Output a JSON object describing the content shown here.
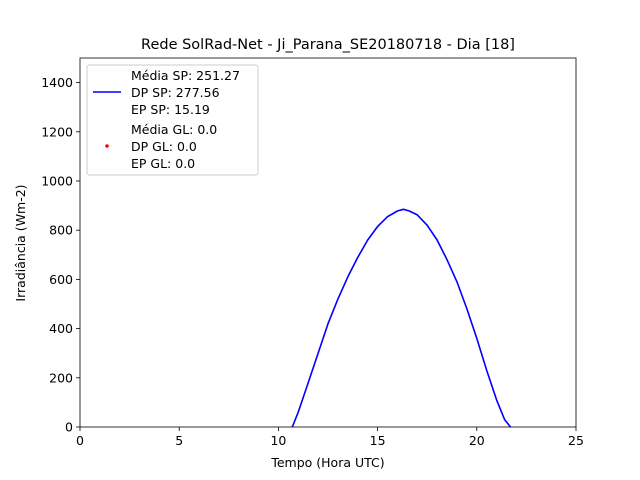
{
  "chart_data": {
    "type": "line",
    "title": "Rede SolRad-Net - Ji_Parana_SE20180718 - Dia [18]",
    "xlabel": "Tempo (Hora UTC)",
    "ylabel": "Irradiância (Wm-2)",
    "xlim": [
      0,
      25
    ],
    "ylim": [
      0,
      1500
    ],
    "xticks": [
      0,
      5,
      10,
      15,
      20,
      25
    ],
    "yticks": [
      0,
      200,
      400,
      600,
      800,
      1000,
      1200,
      1400
    ],
    "xtick_labels": [
      "0",
      "5",
      "10",
      "15",
      "20",
      "25"
    ],
    "ytick_labels": [
      "0",
      "200",
      "400",
      "600",
      "800",
      "1000",
      "1200",
      "1400"
    ],
    "grid": false,
    "legend_position": "top-left",
    "series": [
      {
        "name": "Média SP: 251.27\nDP SP: 277.56\nEP SP: 15.19",
        "style": "line",
        "color": "#0000ff",
        "x": [
          10.7,
          11.0,
          11.5,
          12.0,
          12.5,
          13.0,
          13.5,
          14.0,
          14.5,
          15.0,
          15.5,
          16.0,
          16.3,
          16.6,
          17.0,
          17.5,
          18.0,
          18.5,
          19.0,
          19.5,
          20.0,
          20.5,
          21.0,
          21.4,
          21.7
        ],
        "y": [
          0,
          60,
          180,
          300,
          420,
          520,
          610,
          690,
          760,
          815,
          855,
          878,
          885,
          878,
          862,
          820,
          760,
          680,
          590,
          480,
          360,
          230,
          110,
          30,
          0
        ]
      },
      {
        "name": "Média GL: 0.0\nDP GL: 0.0\nEP GL: 0.0",
        "style": "scatter",
        "color": "#ff0000",
        "x": [],
        "y": []
      }
    ],
    "legend_entries": [
      {
        "lines": [
          "Média SP: 251.27",
          "DP SP: 277.56",
          "EP SP: 15.19"
        ],
        "marker": "line",
        "color": "#0000ff"
      },
      {
        "lines": [
          "Média GL: 0.0",
          "DP GL: 0.0",
          "EP GL: 0.0"
        ],
        "marker": "dot",
        "color": "#ff0000"
      }
    ]
  }
}
